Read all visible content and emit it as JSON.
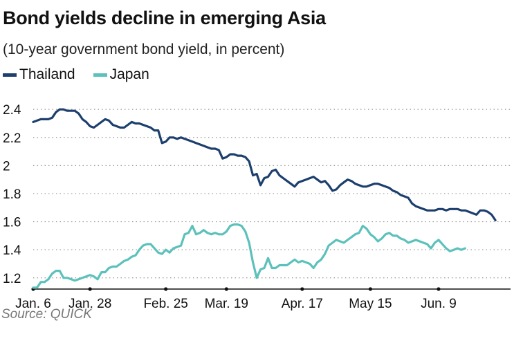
{
  "chart_data": {
    "type": "line",
    "title": "Bond yields decline in emerging Asia",
    "subtitle": "(10-year government bond yield, in percent)",
    "source": "Source: QUICK",
    "ylabel": "",
    "xlabel": "",
    "ylim": [
      1.12,
      2.45
    ],
    "y_ticks": [
      1.2,
      1.4,
      1.6,
      1.8,
      2,
      2.2,
      2.4
    ],
    "y_tick_labels": [
      "1.2",
      "1.4",
      "1.6",
      "1.8",
      "2",
      "2.2",
      "2.4"
    ],
    "x_ticks": [
      0,
      15,
      35,
      51,
      71,
      89,
      107
    ],
    "x_tick_labels": [
      "Jan. 6",
      "Jan. 28",
      "Feb. 25",
      "Mar. 19",
      "Apr. 17",
      "May 15",
      "Jun. 9"
    ],
    "x_range": [
      0,
      126
    ],
    "grid": "horizontal dotted",
    "legend_position": "top-left",
    "series": [
      {
        "name": "Thailand",
        "color": "#1d3f6e",
        "values": [
          2.31,
          2.32,
          2.33,
          2.33,
          2.33,
          2.34,
          2.38,
          2.4,
          2.4,
          2.39,
          2.39,
          2.39,
          2.37,
          2.33,
          2.31,
          2.28,
          2.27,
          2.29,
          2.31,
          2.33,
          2.32,
          2.29,
          2.28,
          2.27,
          2.27,
          2.29,
          2.31,
          2.3,
          2.3,
          2.29,
          2.28,
          2.27,
          2.25,
          2.25,
          2.16,
          2.17,
          2.2,
          2.2,
          2.19,
          2.2,
          2.19,
          2.18,
          2.17,
          2.16,
          2.15,
          2.14,
          2.13,
          2.12,
          2.12,
          2.11,
          2.05,
          2.06,
          2.08,
          2.08,
          2.07,
          2.07,
          2.06,
          2.03,
          1.93,
          1.94,
          1.86,
          1.91,
          1.92,
          1.96,
          1.97,
          1.93,
          1.91,
          1.89,
          1.87,
          1.85,
          1.88,
          1.89,
          1.9,
          1.91,
          1.92,
          1.9,
          1.88,
          1.89,
          1.86,
          1.82,
          1.83,
          1.86,
          1.88,
          1.9,
          1.89,
          1.87,
          1.86,
          1.85,
          1.85,
          1.86,
          1.87,
          1.87,
          1.86,
          1.85,
          1.84,
          1.82,
          1.81,
          1.79,
          1.78,
          1.77,
          1.73,
          1.71,
          1.7,
          1.69,
          1.68,
          1.68,
          1.68,
          1.69,
          1.69,
          1.68,
          1.69,
          1.69,
          1.69,
          1.68,
          1.68,
          1.67,
          1.66,
          1.65,
          1.68,
          1.68,
          1.67,
          1.65,
          1.61
        ]
      },
      {
        "name": "Japan",
        "color": "#5cc1bb",
        "values": [
          1.13,
          1.13,
          1.17,
          1.17,
          1.19,
          1.23,
          1.25,
          1.25,
          1.2,
          1.2,
          1.19,
          1.18,
          1.19,
          1.2,
          1.21,
          1.22,
          1.21,
          1.19,
          1.24,
          1.24,
          1.27,
          1.28,
          1.28,
          1.3,
          1.32,
          1.33,
          1.35,
          1.36,
          1.4,
          1.43,
          1.44,
          1.44,
          1.41,
          1.38,
          1.37,
          1.4,
          1.38,
          1.41,
          1.42,
          1.43,
          1.51,
          1.52,
          1.57,
          1.51,
          1.52,
          1.54,
          1.52,
          1.51,
          1.52,
          1.51,
          1.51,
          1.53,
          1.57,
          1.58,
          1.58,
          1.57,
          1.53,
          1.45,
          1.31,
          1.2,
          1.26,
          1.27,
          1.34,
          1.27,
          1.27,
          1.29,
          1.29,
          1.29,
          1.31,
          1.33,
          1.31,
          1.32,
          1.31,
          1.3,
          1.27,
          1.31,
          1.33,
          1.37,
          1.43,
          1.45,
          1.47,
          1.46,
          1.45,
          1.47,
          1.49,
          1.51,
          1.52,
          1.57,
          1.55,
          1.51,
          1.49,
          1.46,
          1.48,
          1.51,
          1.52,
          1.5,
          1.5,
          1.48,
          1.47,
          1.45,
          1.46,
          1.47,
          1.46,
          1.45,
          1.44,
          1.41,
          1.45,
          1.47,
          1.44,
          1.41,
          1.39,
          1.4,
          1.41,
          1.4,
          1.41
        ]
      }
    ]
  }
}
